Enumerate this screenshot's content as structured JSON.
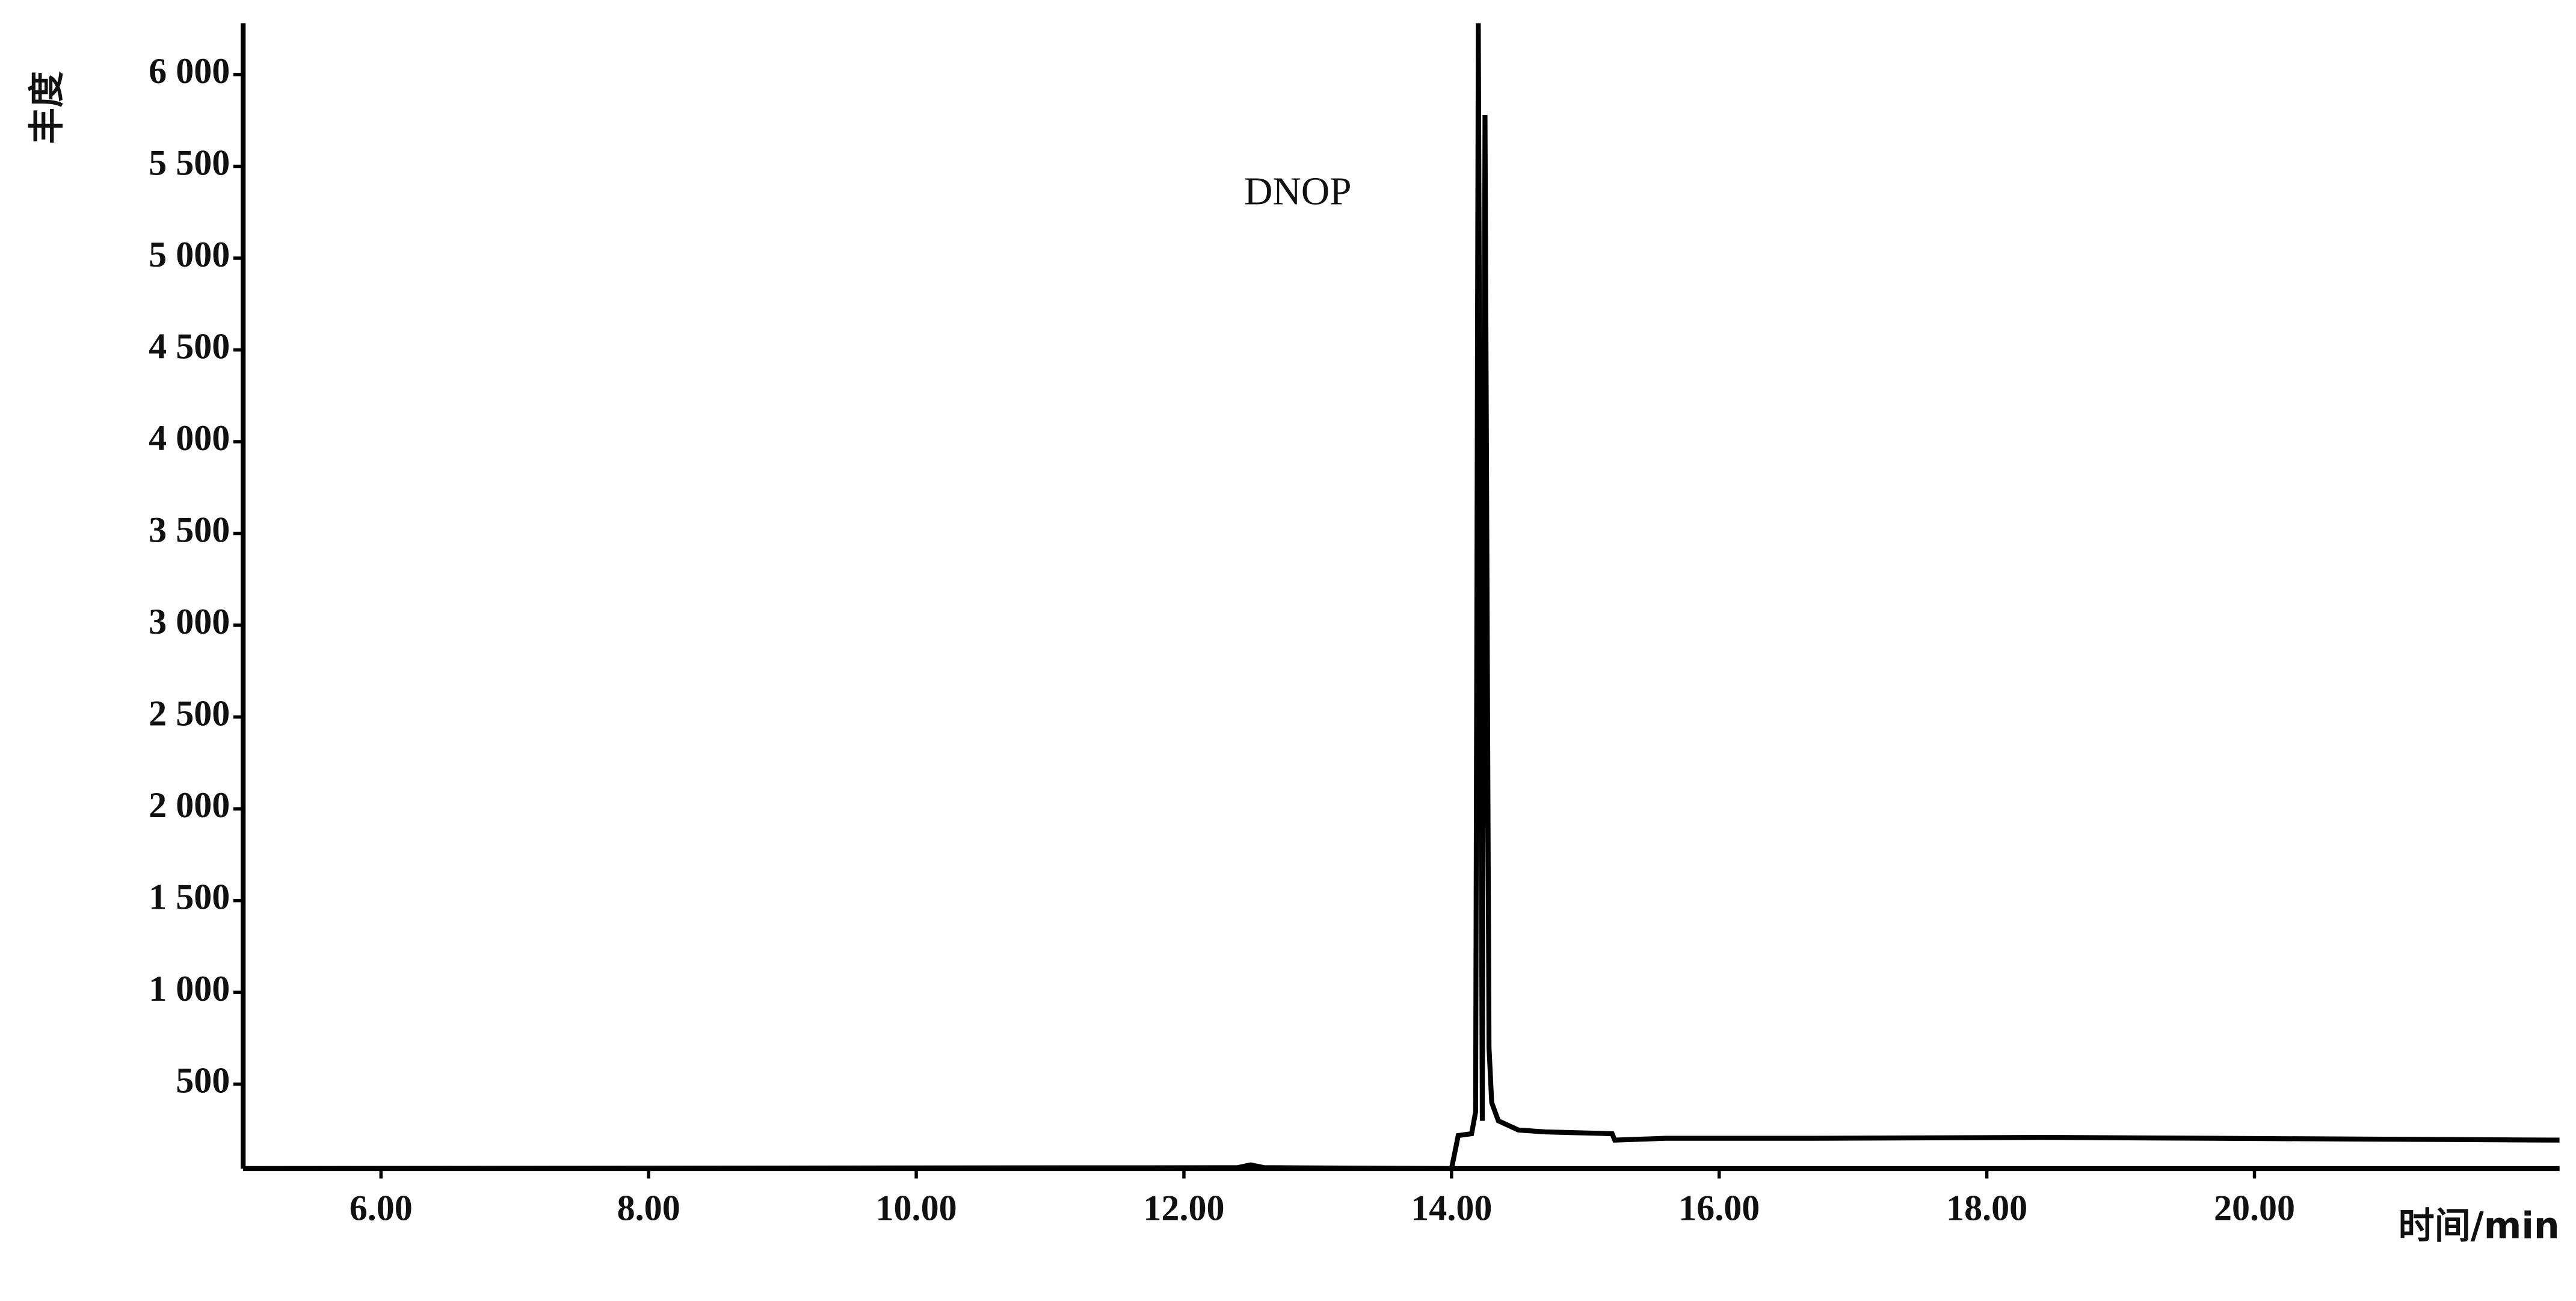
{
  "chart_data": {
    "type": "line",
    "y_label": "丰度",
    "x_label": "时间/min",
    "annotations": [
      "DNOP"
    ],
    "x": [
      5.0,
      12.4,
      12.5,
      12.6,
      14.0,
      14.05,
      14.15,
      14.18,
      14.2,
      14.23,
      14.25,
      14.28,
      14.3,
      14.35,
      14.5,
      14.7,
      15.2,
      15.22,
      15.6,
      16.7,
      18.4,
      22.28
    ],
    "series": [
      {
        "color": "#000000",
        "values": [
          40,
          45,
          60,
          45,
          40,
          220,
          230,
          350,
          6280,
          300,
          5780,
          700,
          400,
          300,
          250,
          240,
          230,
          195,
          205,
          205,
          210,
          195
        ]
      }
    ],
    "xlim": [
      4.97,
      22.28
    ],
    "xticks": [
      {
        "value": 6,
        "label": "6.00"
      },
      {
        "value": 8,
        "label": "8.00"
      },
      {
        "value": 10,
        "label": "10.00"
      },
      {
        "value": 12,
        "label": "12.00"
      },
      {
        "value": 14,
        "label": "14.00"
      },
      {
        "value": 16,
        "label": "16.00"
      },
      {
        "value": 18,
        "label": "18.00"
      },
      {
        "value": 20,
        "label": "20.00"
      }
    ],
    "ylim": [
      40,
      6280
    ],
    "yticks": [
      500,
      {
        "value": 1000,
        "label": "1 000"
      },
      {
        "value": 1500,
        "label": "1 500"
      },
      {
        "value": 2000,
        "label": "2 000"
      },
      {
        "value": 2500,
        "label": "2 500"
      },
      {
        "value": 3000,
        "label": "3 000"
      },
      {
        "value": 3500,
        "label": "3 500"
      },
      {
        "value": 4000,
        "label": "4 000"
      },
      {
        "value": 4500,
        "label": "4 500"
      },
      {
        "value": 5000,
        "label": "5 000"
      },
      {
        "value": 5500,
        "label": "5 500"
      },
      {
        "value": 6000,
        "label": "6 000"
      }
    ]
  }
}
